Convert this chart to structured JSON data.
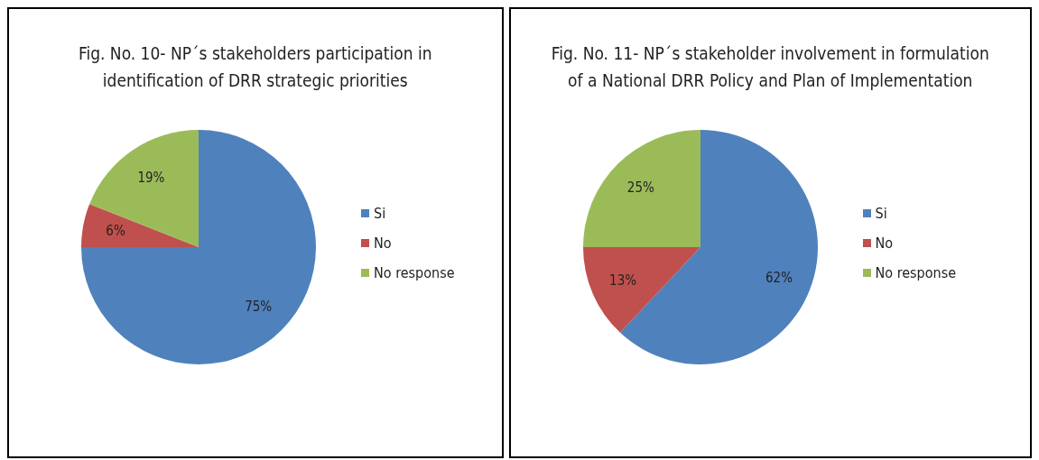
{
  "chart_data": [
    {
      "type": "pie",
      "title": "Fig. No. 10- NP´s stakeholders participation in identification of DRR strategic priorities",
      "categories": [
        "Si",
        "No",
        "No response"
      ],
      "values": [
        75,
        6,
        19
      ],
      "colors": [
        "#4f81bd",
        "#c0504d",
        "#9bbb59"
      ],
      "value_labels": [
        "75%",
        "6%",
        "19%"
      ],
      "legend": "right"
    },
    {
      "type": "pie",
      "title": "Fig. No. 11- NP´s stakeholder involvement in formulation of a National DRR Policy and Plan of Implementation",
      "categories": [
        "Si",
        "No",
        "No response"
      ],
      "values": [
        62,
        13,
        25
      ],
      "colors": [
        "#4f81bd",
        "#c0504d",
        "#9bbb59"
      ],
      "value_labels": [
        "62%",
        "13%",
        "25%"
      ],
      "legend": "right"
    }
  ]
}
